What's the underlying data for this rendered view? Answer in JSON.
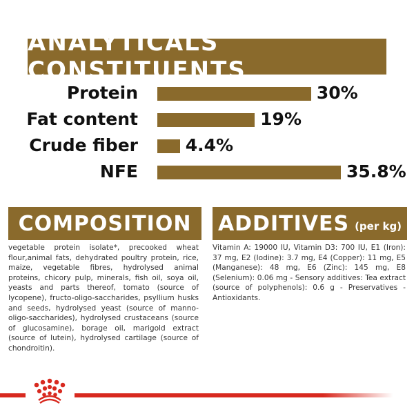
{
  "analytical": {
    "title": "ANALYTICALS CONSTITUENTS"
  },
  "chart_data": {
    "type": "bar",
    "orientation": "horizontal",
    "title": "ANALYTICALS CONSTITUENTS",
    "categories": [
      "Protein",
      "Fat content",
      "Crude fiber",
      "NFE"
    ],
    "values": [
      30,
      19,
      4.4,
      35.8
    ],
    "value_labels": [
      "30%",
      "19%",
      "4.4%",
      "35.8%"
    ],
    "unit": "%",
    "grid": false,
    "bar_color": "#8a6a2c"
  },
  "composition": {
    "title": "COMPOSITION",
    "text": "vegetable protein isolate*, precooked wheat flour,animal fats, dehydrated poultry protein, rice, maize, vegetable fibres, hydrolysed animal proteins, chicory pulp, minerals, fish oil, soya oil, yeasts and parts thereof, tomato (source of lycopene), fructo-oligo-saccharides, psyllium husks and seeds, hydrolysed yeast (source of manno-oligo-saccharides), hydrolysed crustaceans (source of glucosamine), borage oil, marigold extract (source of lutein), hydrolysed cartilage (source of chondroitin)."
  },
  "additives": {
    "title": "ADDITIVES",
    "subtitle": "(per kg)",
    "text": "Vitamin A: 19000 IU, Vitamin D3: 700 IU, E1 (Iron): 37 mg, E2 (Iodine): 3.7 mg, E4 (Copper): 11 mg, E5 (Manganese): 48 mg, E6 (Zinc): 145 mg, E8 (Selenium): 0.06 mg - Sensory additives: Tea extract (source of polyphenols): 0.6 g - Preservatives - Antioxidants."
  },
  "brand": {
    "logo": "crown-logo",
    "color": "#d8291f"
  }
}
